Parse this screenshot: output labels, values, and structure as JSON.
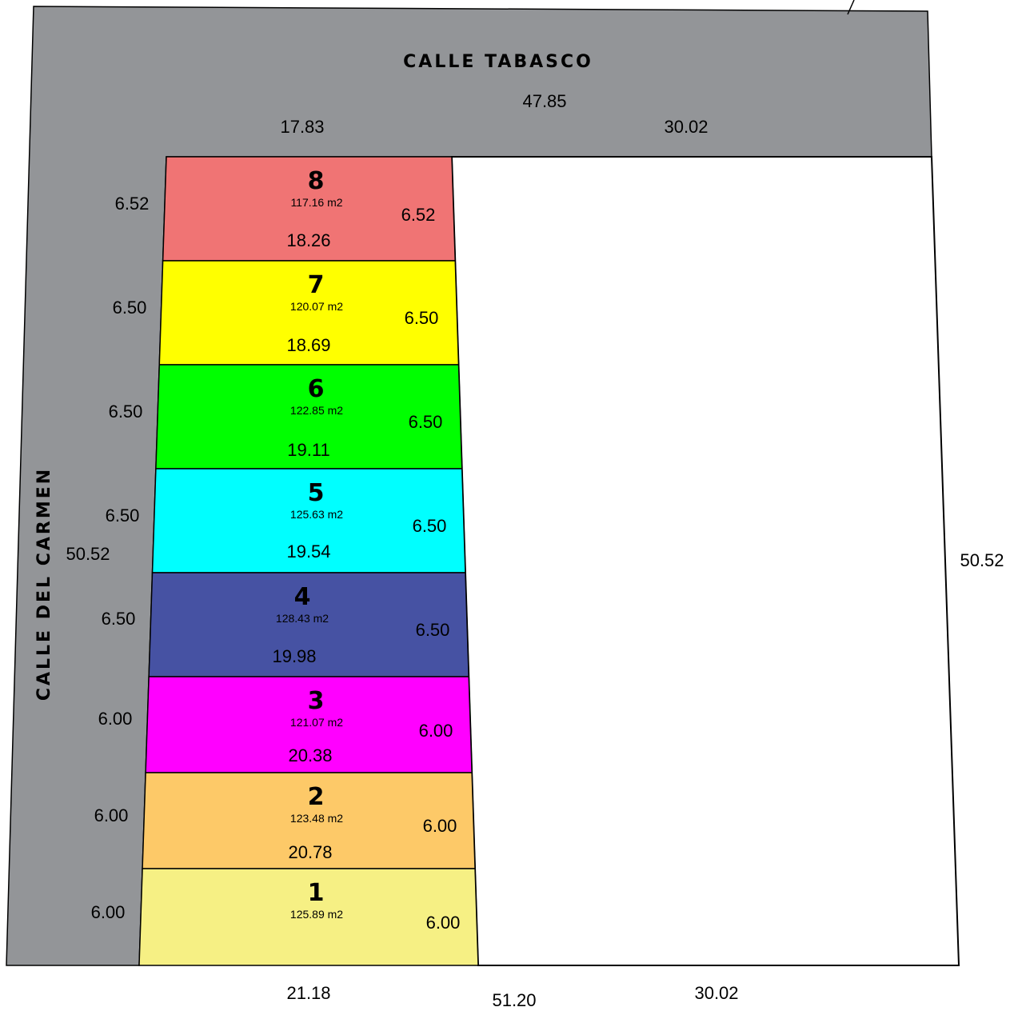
{
  "streets": {
    "north": "CALLE TABASCO",
    "west": "CALLE DEL CARMEN"
  },
  "street_color": "#939598",
  "top_dims": {
    "total": "47.85",
    "left": "17.83",
    "right": "30.02"
  },
  "bottom_dims": {
    "total": "51.20",
    "left": "21.18",
    "right": "30.02"
  },
  "side_dims": {
    "west": "50.52",
    "east": "50.52"
  },
  "lots": [
    {
      "number": "8",
      "area": "117.16 m2",
      "front": "6.52",
      "back": "6.52",
      "length": "18.26",
      "color": "#f07474"
    },
    {
      "number": "7",
      "area": "120.07 m2",
      "front": "6.50",
      "back": "6.50",
      "length": "18.69",
      "color": "#ffff00"
    },
    {
      "number": "6",
      "area": "122.85 m2",
      "front": "6.50",
      "back": "6.50",
      "length": "19.11",
      "color": "#00ff00"
    },
    {
      "number": "5",
      "area": "125.63 m2",
      "front": "6.50",
      "back": "6.50",
      "length": "19.54",
      "color": "#00ffff"
    },
    {
      "number": "4",
      "area": "128.43 m2",
      "front": "6.50",
      "back": "6.50",
      "length": "19.98",
      "color": "#4652a3"
    },
    {
      "number": "3",
      "area": "121.07 m2",
      "front": "6.00",
      "back": "6.00",
      "length": "20.38",
      "color": "#ff00ff"
    },
    {
      "number": "2",
      "area": "123.48 m2",
      "front": "6.00",
      "back": "6.00",
      "length": "20.78",
      "color": "#fdc968"
    },
    {
      "number": "1",
      "area": "125.89 m2",
      "front": "6.00",
      "back": "6.00",
      "length": "",
      "color": "#f6f084"
    }
  ]
}
